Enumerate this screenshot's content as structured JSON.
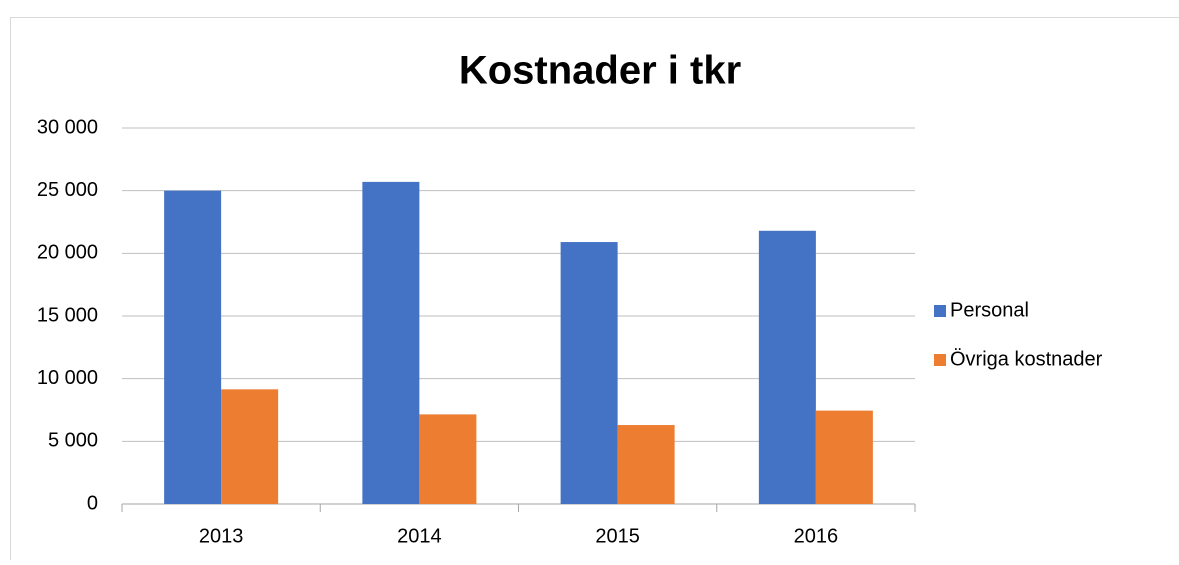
{
  "chart_data": {
    "type": "bar",
    "title": "Kostnader i tkr",
    "categories": [
      "2013",
      "2014",
      "2015",
      "2016"
    ],
    "series": [
      {
        "name": "Personal",
        "color": "#4472c4",
        "values": [
          25000,
          25700,
          20900,
          21800
        ]
      },
      {
        "name": "Övriga kostnader",
        "color": "#ed7d31",
        "values": [
          9150,
          7150,
          6300,
          7450
        ]
      }
    ],
    "ylim": [
      0,
      30000
    ],
    "yticks": [
      0,
      {
        "value": 5000,
        "label": "5 000"
      },
      {
        "value": 10000,
        "label": "10 000"
      },
      {
        "value": 15000,
        "label": "15 000"
      },
      {
        "value": 20000,
        "label": "20 000"
      },
      {
        "value": 25000,
        "label": "25 000"
      },
      {
        "value": 30000,
        "label": "30 000"
      }
    ],
    "grid": true,
    "legend": "right"
  }
}
